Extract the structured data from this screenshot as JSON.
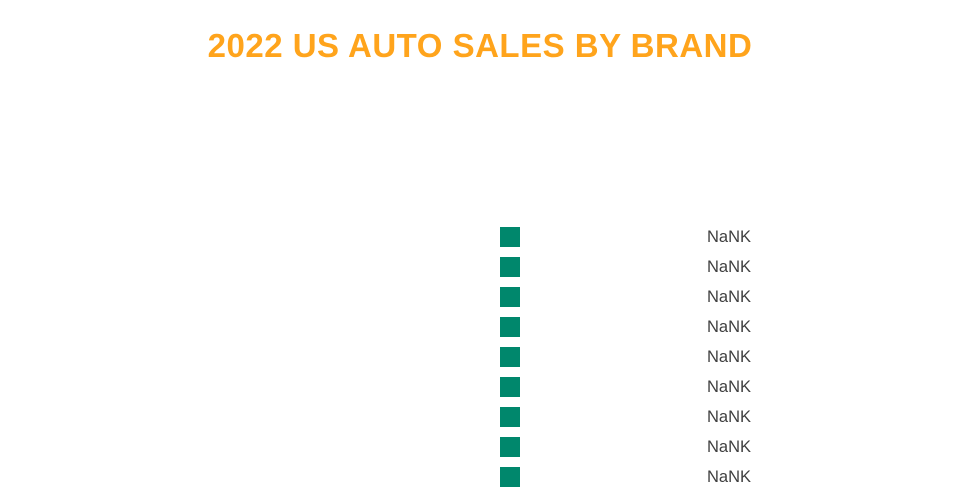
{
  "chart_data": {
    "type": "bar",
    "orientation": "horizontal",
    "title": "2022 US AUTO SALES BY BRAND",
    "row_count": 9,
    "value_labels": [
      "NaNK",
      "NaNK",
      "NaNK",
      "NaNK",
      "NaNK",
      "NaNK",
      "NaNK",
      "NaNK",
      "NaNK"
    ],
    "colors": {
      "title": "#FFA41C",
      "bar": "#00876C",
      "value_label": "#3F3F3F",
      "background": "#FFFFFF"
    },
    "layout_hints": {
      "axes_visible": false,
      "grid": false,
      "legend": "none",
      "category_labels_visible": false
    }
  }
}
